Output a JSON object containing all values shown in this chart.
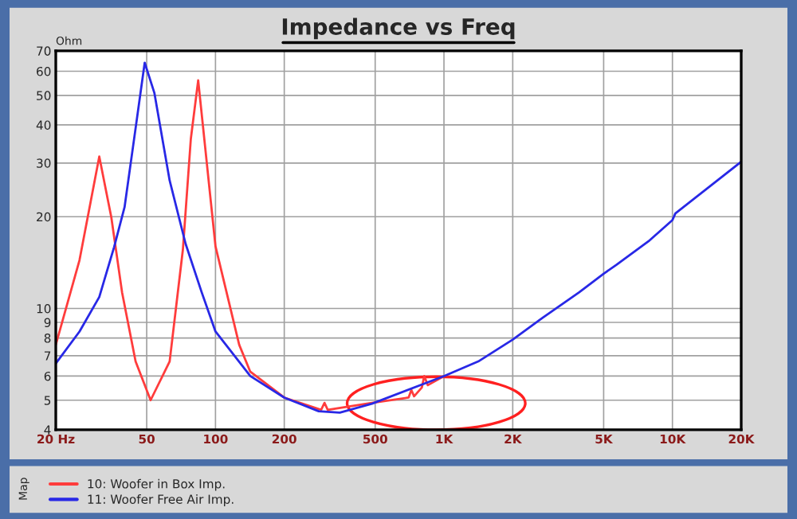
{
  "chart_data": {
    "type": "line",
    "title": "Impedance vs Freq",
    "ylabel": "Ohm",
    "legend_title": "Map",
    "log": "xy",
    "grid": true,
    "legend": "bottom",
    "marker": "none",
    "line_style": "solid",
    "xlim": [
      20,
      20000
    ],
    "ylim": [
      4,
      70
    ],
    "xticks": [
      {
        "value": 20,
        "label": "20 Hz"
      },
      50,
      100,
      200,
      500,
      {
        "value": 1000,
        "label": "1K"
      },
      {
        "value": 2000,
        "label": "2K"
      },
      {
        "value": 5000,
        "label": "5K"
      },
      {
        "value": 10000,
        "label": "10K"
      },
      {
        "value": 20000,
        "label": "20K"
      }
    ],
    "yticks": [
      4,
      5,
      6,
      7,
      8,
      9,
      10,
      20,
      30,
      40,
      50,
      60,
      70
    ],
    "series": [
      {
        "name": "10: Woofer in Box Imp.",
        "color": "#ff3c3c",
        "x": [
          20,
          25.4,
          31,
          35,
          39,
          44.7,
          52,
          63,
          72,
          78,
          84,
          100,
          127,
          142,
          200,
          290,
          300,
          310,
          484,
          700,
          720,
          740,
          800,
          820,
          850,
          1000
        ],
        "values": [
          7.6,
          14.4,
          31.5,
          19.9,
          11.3,
          6.7,
          5.0,
          6.7,
          15.6,
          36,
          56,
          16,
          7.6,
          6.2,
          5.1,
          4.65,
          4.9,
          4.65,
          4.9,
          5.1,
          5.4,
          5.15,
          5.5,
          6.0,
          5.6,
          6.0
        ]
      },
      {
        "name": "11: Woofer Free Air Imp.",
        "color": "#2828e6",
        "x": [
          20,
          25.4,
          31,
          36,
          40,
          44.7,
          49,
          54,
          63,
          74,
          87,
          100,
          142,
          200,
          283,
          350,
          484,
          1000,
          1413,
          2000,
          2690,
          3910,
          5000,
          5690,
          7850,
          10000,
          10300,
          20000
        ],
        "values": [
          6.6,
          8.4,
          10.9,
          15.9,
          21.5,
          39,
          64,
          51,
          26.3,
          16.3,
          11.3,
          8.4,
          6.0,
          5.1,
          4.6,
          4.55,
          4.87,
          6.0,
          6.7,
          7.9,
          9.3,
          11.3,
          13.0,
          13.9,
          16.6,
          19.5,
          20.5,
          30.3
        ]
      }
    ]
  }
}
